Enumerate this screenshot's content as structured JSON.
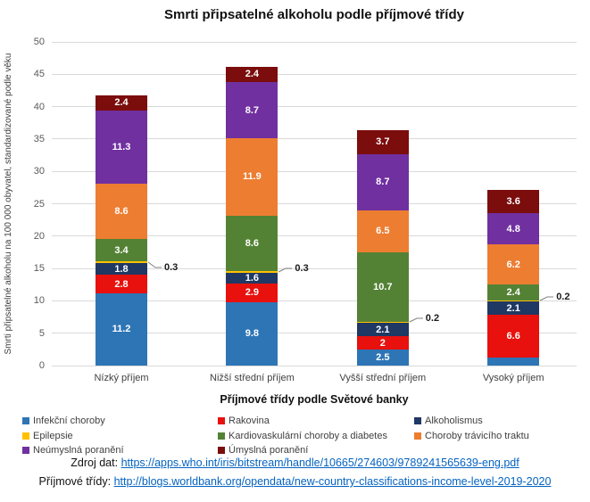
{
  "chart_data": {
    "type": "bar",
    "stacked": true,
    "title": "Smrti připsatelné alkoholu podle příjmové třídy",
    "xlabel": "Příjmové třídy podle Světové banky",
    "ylabel": "Smrti připsatelné alkoholu na 100 000 obyvatel, standardizované podle věku",
    "ylim": [
      0,
      50
    ],
    "ytick_step": 5,
    "grid": true,
    "legend_position": "bottom",
    "categories": [
      "Nízký příjem",
      "Nižší střední příjem",
      "Vyšší střední příjem",
      "Vysoký příjem"
    ],
    "series": [
      {
        "name": "Infekční choroby",
        "color": "#2E75B6",
        "values": [
          11.2,
          9.8,
          2.5,
          1.2
        ]
      },
      {
        "name": "Rakovina",
        "color": "#E8110D",
        "values": [
          2.8,
          2.9,
          2,
          6.6
        ]
      },
      {
        "name": "Alkoholismus",
        "color": "#1F3864",
        "values": [
          1.8,
          1.6,
          2.1,
          2.1
        ]
      },
      {
        "name": "Epilepsie",
        "color": "#FFC000",
        "values": [
          0.3,
          0.3,
          0.2,
          0.2
        ],
        "label_outside": true
      },
      {
        "name": "Kardiovaskulární choroby a diabetes",
        "color": "#548235",
        "values": [
          3.4,
          8.6,
          10.7,
          2.4
        ]
      },
      {
        "name": "Choroby trávicího traktu",
        "color": "#ED7D31",
        "values": [
          8.6,
          11.9,
          6.5,
          6.2
        ]
      },
      {
        "name": "Neúmyslná poranění",
        "color": "#7030A0",
        "values": [
          11.3,
          8.7,
          8.7,
          4.8
        ]
      },
      {
        "name": "Úmyslná poranění",
        "color": "#7B0D0D",
        "values": [
          2.4,
          2.4,
          3.7,
          3.6
        ]
      }
    ]
  },
  "sources": [
    {
      "label": "Zdroj dat:",
      "url": "https://apps.who.int/iris/bitstream/handle/10665/274603/9789241565639-eng.pdf"
    },
    {
      "label": "Příjmové třídy:",
      "url": "http://blogs.worldbank.org/opendata/new-country-classifications-income-level-2019-2020"
    }
  ],
  "colors": {
    "link": "#0563C1",
    "grid": "#D9D9D9",
    "axis_text": "#595959",
    "label_text": "#404040",
    "leader_line": "#808080"
  }
}
